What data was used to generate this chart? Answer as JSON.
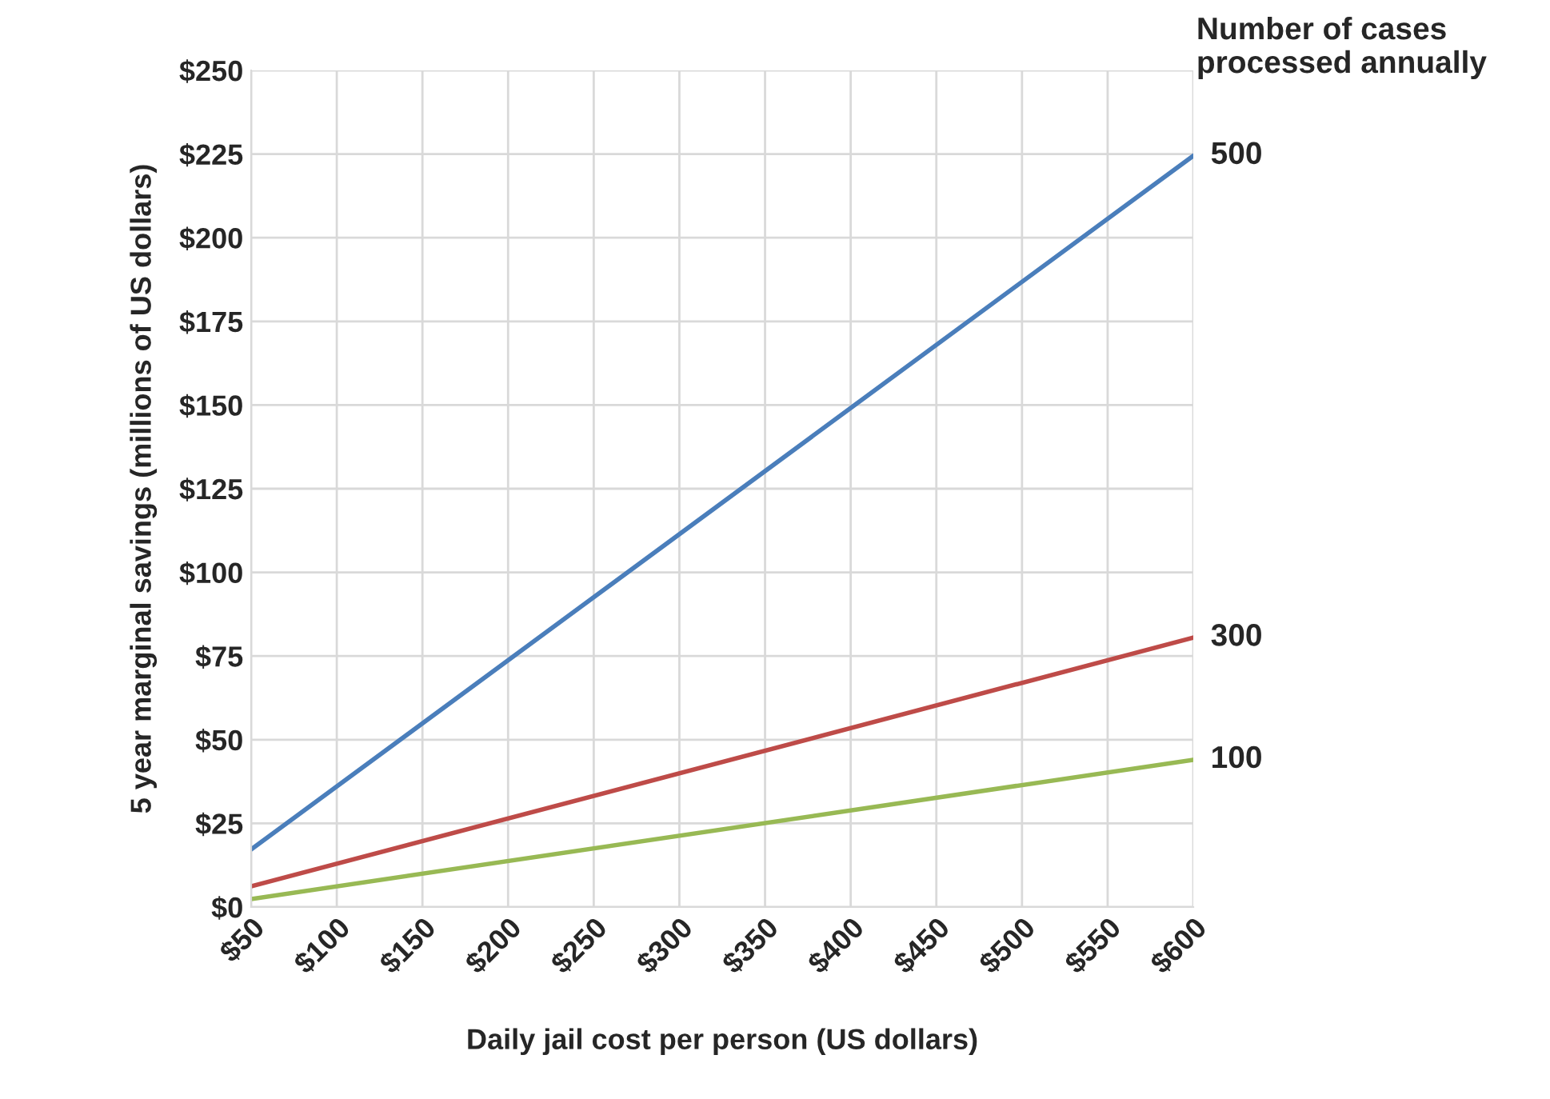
{
  "chart_data": {
    "type": "line",
    "xlabel": "Daily jail cost per person (US dollars)",
    "ylabel": "5 year marginal savings (millions of US dollars)",
    "legend_title": "Number of cases processed annually",
    "x": [
      50,
      600
    ],
    "series": [
      {
        "name": "500",
        "color": "#4a7ebb",
        "values": [
          17.2,
          224.5
        ]
      },
      {
        "name": "300",
        "color": "#be4b48",
        "values": [
          6.2,
          80.5
        ]
      },
      {
        "name": "100",
        "color": "#98b954",
        "values": [
          2.4,
          44
        ]
      }
    ],
    "xlim": [
      50,
      600
    ],
    "xticks": [
      {
        "value": 50,
        "label": "$50"
      },
      {
        "value": 100,
        "label": "$100"
      },
      {
        "value": 150,
        "label": "$150"
      },
      {
        "value": 200,
        "label": "$200"
      },
      {
        "value": 250,
        "label": "$250"
      },
      {
        "value": 300,
        "label": "$300"
      },
      {
        "value": 350,
        "label": "$350"
      },
      {
        "value": 400,
        "label": "$400"
      },
      {
        "value": 450,
        "label": "$450"
      },
      {
        "value": 500,
        "label": "$500"
      },
      {
        "value": 550,
        "label": "$550"
      },
      {
        "value": 600,
        "label": "$600"
      }
    ],
    "ylim": [
      0,
      250
    ],
    "yticks": [
      {
        "value": 0,
        "label": "$0"
      },
      {
        "value": 25,
        "label": "$25"
      },
      {
        "value": 50,
        "label": "$50"
      },
      {
        "value": 75,
        "label": "$75"
      },
      {
        "value": 100,
        "label": "$100"
      },
      {
        "value": 125,
        "label": "$125"
      },
      {
        "value": 150,
        "label": "$150"
      },
      {
        "value": 175,
        "label": "$175"
      },
      {
        "value": 200,
        "label": "$200"
      },
      {
        "value": 225,
        "label": "$225"
      },
      {
        "value": 250,
        "label": "$250"
      }
    ],
    "grid": true
  }
}
